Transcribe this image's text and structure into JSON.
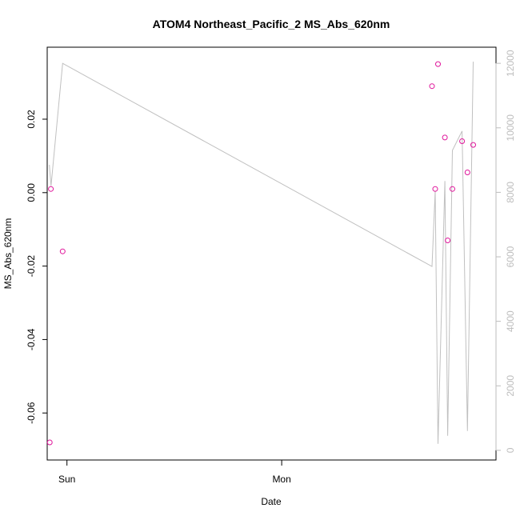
{
  "chart_data": {
    "type": "scatter",
    "title": "ATOM4 Northeast_Pacific_2 MS_Abs_620nm",
    "xlabel": "Date",
    "ylabel": "MS_Abs_620nm",
    "x_ticks": [
      "Sun",
      "Mon"
    ],
    "y_left_ticks": [
      "-0.06",
      "-0.04",
      "-0.02",
      "0.00",
      "0.02"
    ],
    "y_right_ticks": [
      "0",
      "2000",
      "4000",
      "6000",
      "8000",
      "10000",
      "12000"
    ],
    "x_unit": "days since Sun 00:00",
    "xlim": [
      -0.092,
      1.998
    ],
    "y_left_lim": [
      -0.0728,
      0.0396
    ],
    "y_right_lim": [
      -300,
      12500
    ],
    "grid": false,
    "colors": {
      "points": "#e0169b",
      "line": "#c0c0c0",
      "right_axis": "#bdbdbd",
      "axis": "#000000"
    },
    "series": [
      {
        "name": "MS_Abs_620nm",
        "axis": "left",
        "style": "points",
        "x": [
          -0.08,
          -0.075,
          -0.02,
          1.7,
          1.715,
          1.728,
          1.76,
          1.773,
          1.795,
          1.84,
          1.865,
          1.892
        ],
        "y": [
          -0.068,
          0.001,
          -0.016,
          0.029,
          0.001,
          0.035,
          0.015,
          -0.013,
          0.001,
          0.014,
          0.0055,
          0.013
        ]
      },
      {
        "axis": "right",
        "style": "line",
        "x": [
          -0.082,
          -0.074,
          -0.02,
          1.7,
          1.715,
          1.728,
          1.76,
          1.773,
          1.795,
          1.84,
          1.865,
          1.892
        ],
        "y": [
          8850,
          8200,
          12000,
          5700,
          8050,
          200,
          8350,
          450,
          9300,
          9900,
          600,
          12050
        ]
      }
    ]
  }
}
